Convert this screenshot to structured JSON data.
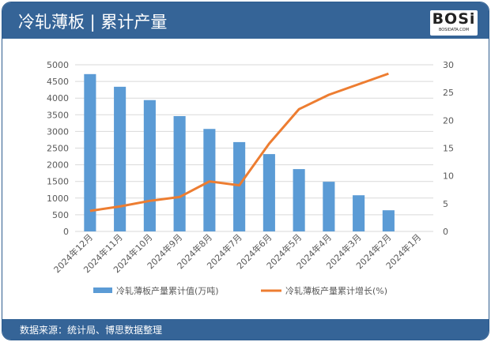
{
  "header": {
    "title": "冷轧薄板 | 累计产量",
    "logo": "BOSi",
    "logo_sub": "BOSIDATA.COM"
  },
  "footer": {
    "source": "数据来源：统计局、博思数据整理"
  },
  "colors": {
    "bar": "#5b9bd5",
    "line": "#ed7d31",
    "header": "#356497"
  },
  "chart_data": {
    "type": "bar+line",
    "categories": [
      "2024年12月",
      "2024年11月",
      "2024年10月",
      "2024年9月",
      "2024年8月",
      "2024年7月",
      "2024年6月",
      "2024年5月",
      "2024年4月",
      "2024年3月",
      "2024年2月",
      "2024年1月"
    ],
    "series": [
      {
        "name": "冷轧薄板产量累计值(万吨)",
        "type": "bar",
        "axis": "left",
        "values": [
          4720,
          4340,
          3940,
          3460,
          3075,
          2680,
          2320,
          1870,
          1490,
          1085,
          635,
          null
        ]
      },
      {
        "name": "冷轧薄板产量累计增长(%)",
        "type": "line",
        "axis": "right",
        "values": [
          3.7,
          4.5,
          5.5,
          6.2,
          9.0,
          8.3,
          15.8,
          22.0,
          24.6,
          26.5,
          28.4,
          null
        ]
      }
    ],
    "ylim_left": [
      0,
      5000
    ],
    "yticks_left": [
      0,
      500,
      1000,
      1500,
      2000,
      2500,
      3000,
      3500,
      4000,
      4500,
      5000
    ],
    "ylim_right": [
      0,
      30
    ],
    "yticks_right": [
      0,
      5,
      10,
      15,
      20,
      25,
      30
    ],
    "legend": "bottom",
    "grid": true
  }
}
